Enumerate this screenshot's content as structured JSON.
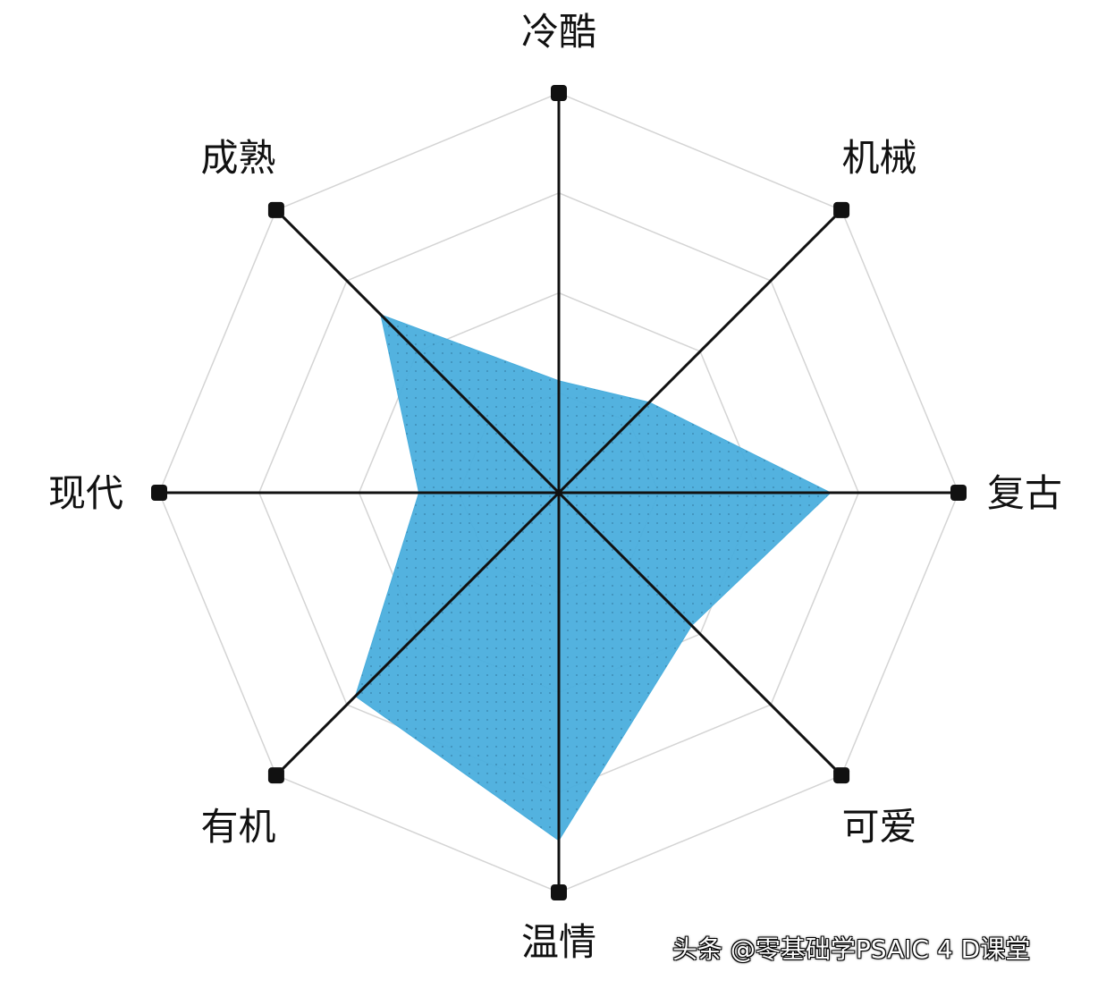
{
  "chart_data": {
    "type": "radar",
    "axes": [
      "冷酷",
      "机械",
      "复古",
      "可爱",
      "温情",
      "有机",
      "现代",
      "成熟"
    ],
    "values": [
      0.28,
      0.32,
      0.68,
      0.47,
      0.87,
      0.72,
      0.35,
      0.63
    ],
    "range": [
      0,
      1
    ],
    "grid_levels": 4,
    "grid": true,
    "fill_color": "#4aaedd",
    "axis_color": "#111111",
    "grid_color": "#d4d4d4"
  },
  "watermark": "头条 @零基础学PSAIC 4 D课堂"
}
